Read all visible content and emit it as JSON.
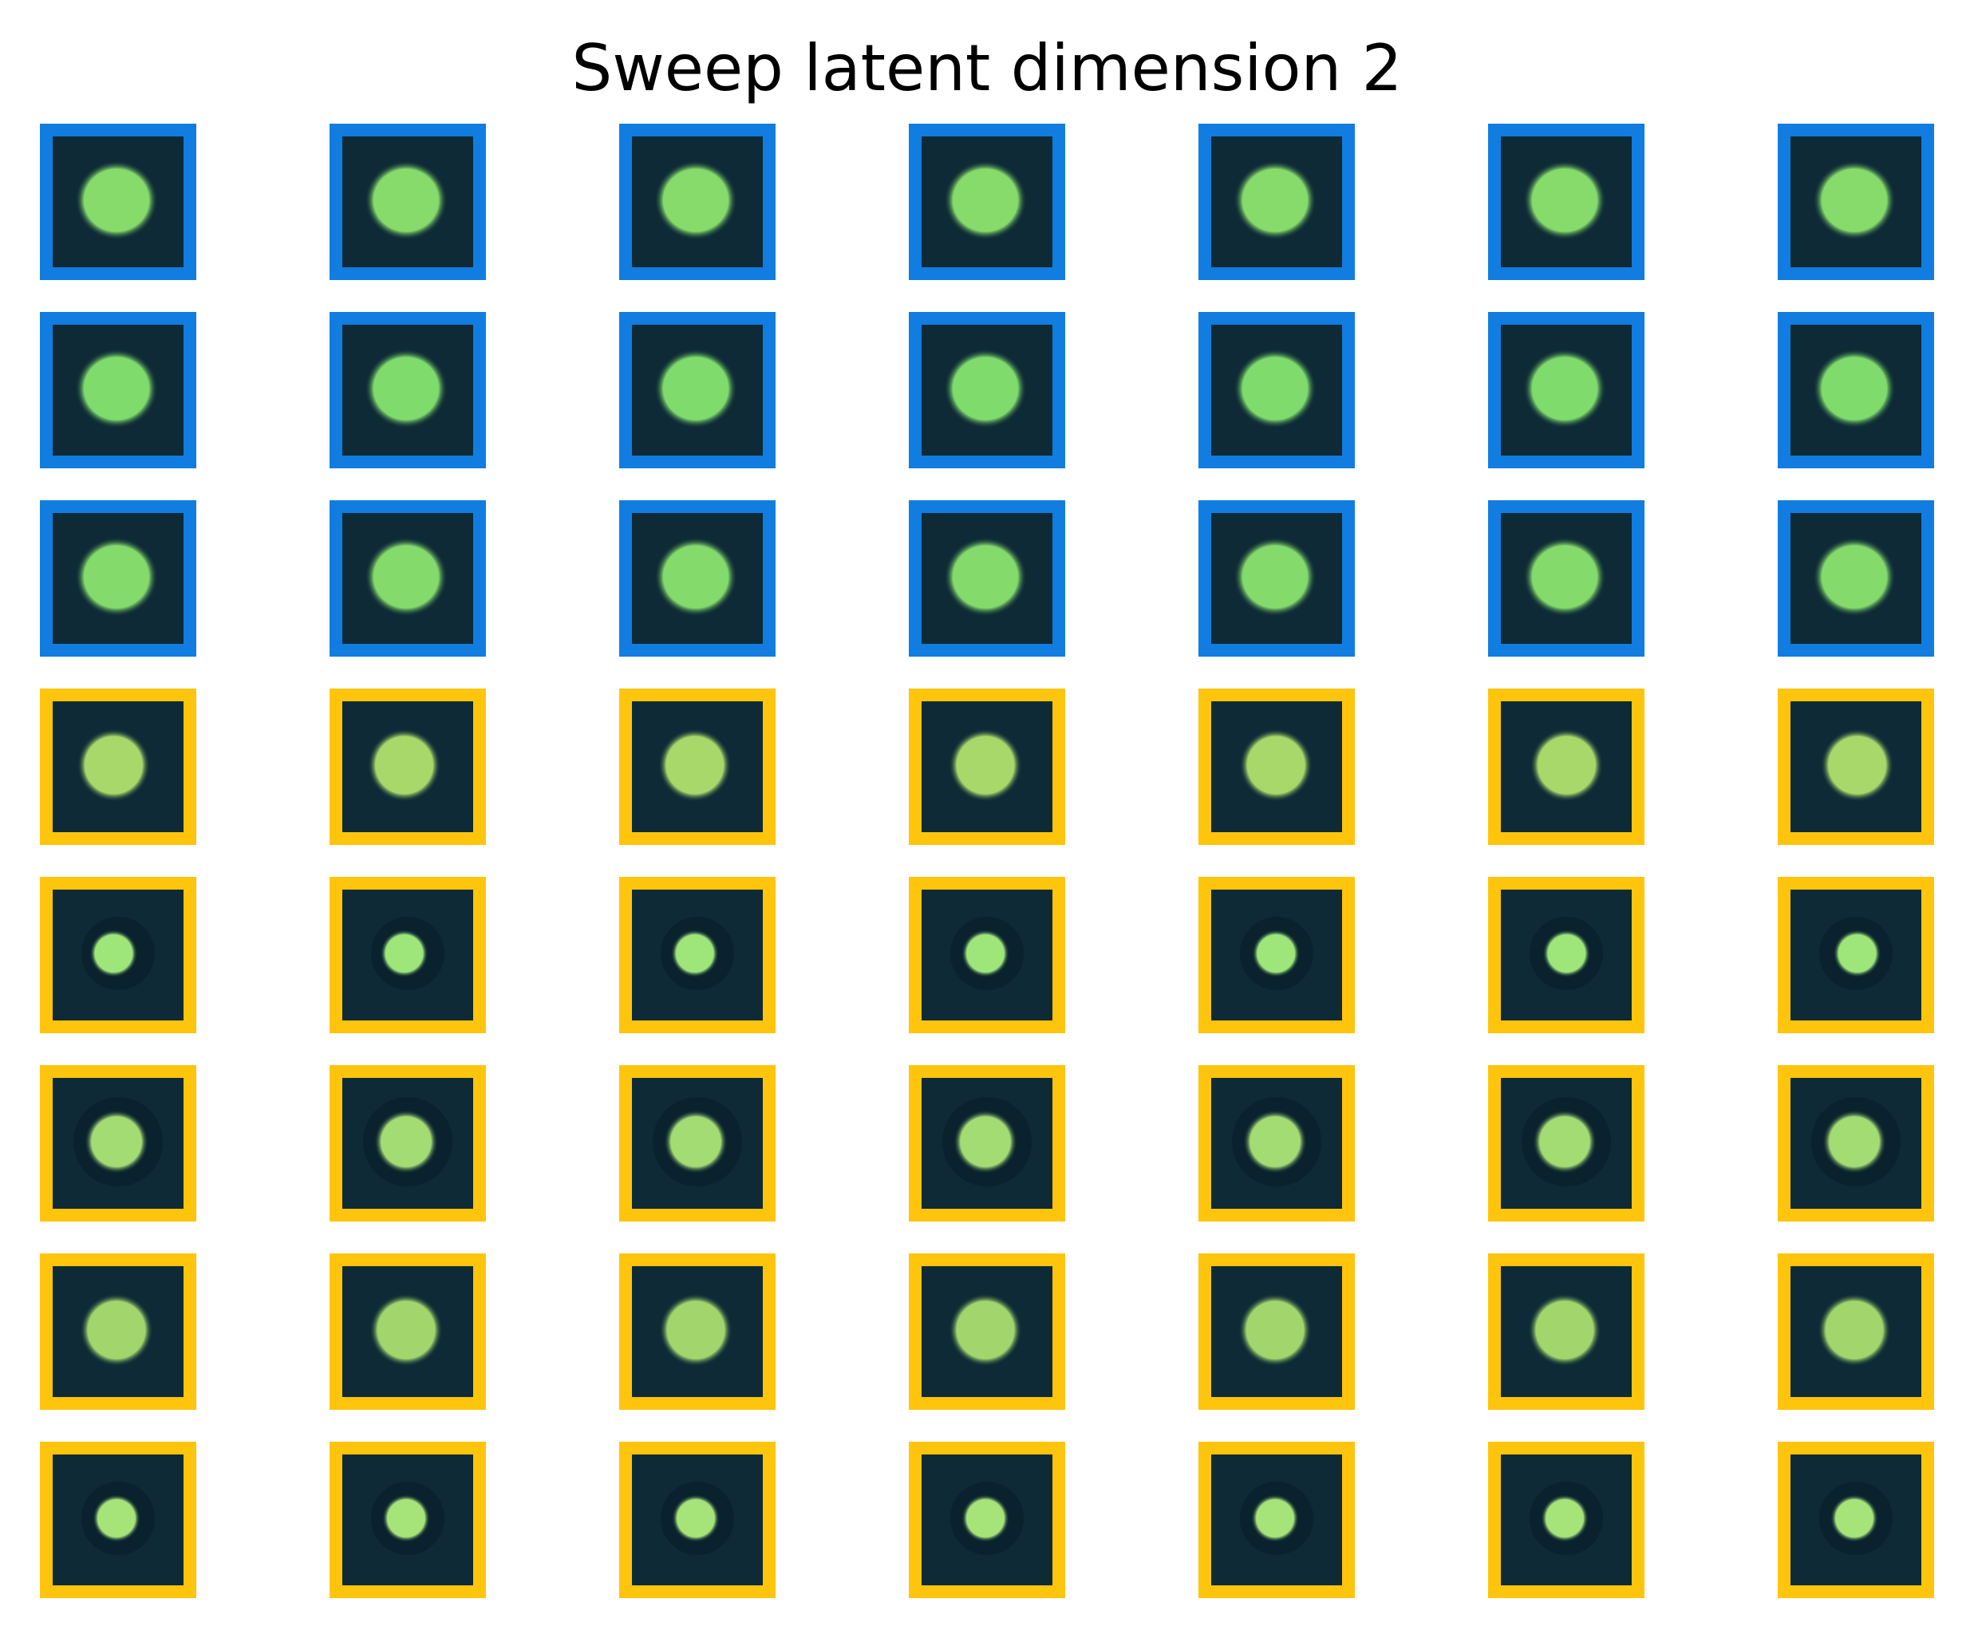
{
  "title": "Sweep latent dimension 2",
  "colors": {
    "border_blue": "#117de0",
    "border_yellow": "#ffc40c",
    "tile_background": "#0d2a36",
    "blob_green": "#8fd86a"
  },
  "grid": {
    "columns": 7,
    "rows": [
      {
        "border": "blue",
        "blob": "large",
        "blob_color": "#86db6a"
      },
      {
        "border": "blue",
        "blob": "large",
        "blob_color": "#7fdc6c"
      },
      {
        "border": "blue",
        "blob": "large",
        "blob_color": "#84da6b"
      },
      {
        "border": "yellow",
        "blob": "medium",
        "blob_color": "#a8d86a"
      },
      {
        "border": "yellow",
        "blob": "small",
        "blob_color": "#9ee67a"
      },
      {
        "border": "yellow",
        "blob": "medium-small",
        "blob_color": "#a4dc74"
      },
      {
        "border": "yellow",
        "blob": "medium",
        "blob_color": "#a2d66c"
      },
      {
        "border": "yellow",
        "blob": "small",
        "blob_color": "#a6e47a"
      }
    ]
  }
}
